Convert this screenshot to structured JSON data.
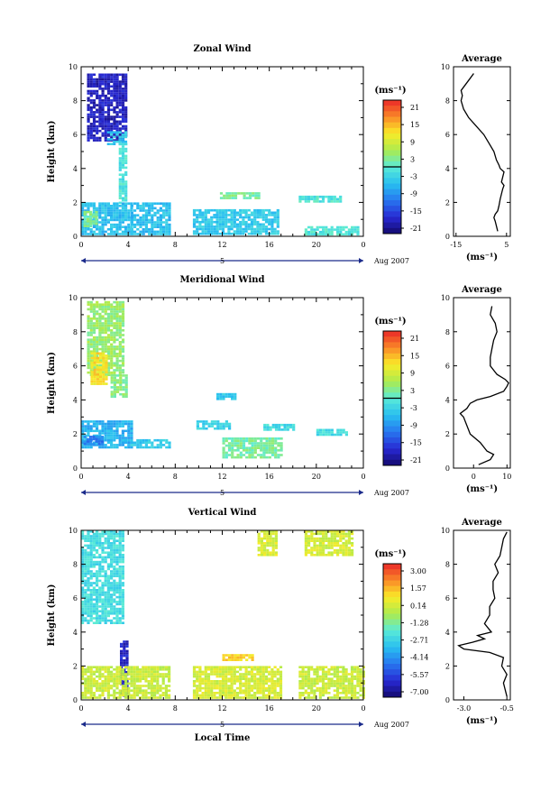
{
  "chart_data": [
    {
      "type": "heatmap",
      "title": "Zonal Wind",
      "ylabel": "Height (km)",
      "xlabel": "",
      "x_ticks": [
        "0",
        "4",
        "8",
        "12",
        "16",
        "20",
        "0"
      ],
      "y_ticks": [
        "0",
        "2",
        "4",
        "6",
        "8",
        "10"
      ],
      "xlim": [
        0,
        24
      ],
      "ylim": [
        0,
        10
      ],
      "day_label": "5",
      "month_label": "Aug 2007",
      "colorbar": {
        "unit": "(ms⁻¹)",
        "min": -21,
        "max": 21,
        "zero_line": 0,
        "ticks": [
          "21",
          "15",
          "9",
          "3",
          "-3",
          "-9",
          "-15",
          "-21"
        ]
      },
      "blobs": [
        {
          "t": [
            0.5,
            3.8
          ],
          "z": [
            5.6,
            9.6
          ],
          "v": -17
        },
        {
          "t": [
            2.2,
            3.8
          ],
          "z": [
            5.5,
            6.2
          ],
          "v": -4
        },
        {
          "t": [
            3.2,
            3.9
          ],
          "z": [
            2.0,
            5.5
          ],
          "v": -1
        },
        {
          "t": [
            0.0,
            4.2
          ],
          "z": [
            0.1,
            2.0
          ],
          "v": -5
        },
        {
          "t": [
            0.2,
            1.2
          ],
          "z": [
            0.6,
            1.5
          ],
          "v": 2
        },
        {
          "t": [
            4.2,
            7.5
          ],
          "z": [
            0.1,
            2.0
          ],
          "v": -5
        },
        {
          "t": [
            9.5,
            16.8
          ],
          "z": [
            0.1,
            1.6
          ],
          "v": -4
        },
        {
          "t": [
            11.8,
            15.0
          ],
          "z": [
            2.2,
            2.6
          ],
          "v": 2
        },
        {
          "t": [
            19.0,
            23.5
          ],
          "z": [
            0.1,
            0.6
          ],
          "v": -1
        },
        {
          "t": [
            18.5,
            22.0
          ],
          "z": [
            2.0,
            2.4
          ],
          "v": -1
        }
      ],
      "profile": {
        "title": "Average",
        "xlabel": "(ms⁻¹)",
        "x_ticks": [
          "-15",
          "5"
        ],
        "xlim": [
          -16,
          6.5
        ],
        "z": [
          0.3,
          0.6,
          0.9,
          1.1,
          1.3,
          1.5,
          1.8,
          2.2,
          2.5,
          2.8,
          3.0,
          3.2,
          3.5,
          3.8,
          4.0,
          4.2,
          4.5,
          5.0,
          5.5,
          6.0,
          6.5,
          7.0,
          7.5,
          8.0,
          8.3,
          8.6,
          9.0,
          9.3,
          9.6
        ],
        "v": [
          1.5,
          1.0,
          0.5,
          0.0,
          0.5,
          1.5,
          2.0,
          2.5,
          3.0,
          3.5,
          4.0,
          3.0,
          3.5,
          4.0,
          2.5,
          2.0,
          1.0,
          0.0,
          -2.0,
          -4.0,
          -7.0,
          -10.0,
          -12.0,
          -13.0,
          -12.5,
          -13.0,
          -11.0,
          -9.5,
          -8.0
        ]
      }
    },
    {
      "type": "heatmap",
      "title": "Meridional Wind",
      "ylabel": "Height (km)",
      "xlabel": "",
      "x_ticks": [
        "0",
        "4",
        "8",
        "12",
        "16",
        "20",
        "0"
      ],
      "y_ticks": [
        "0",
        "2",
        "4",
        "6",
        "8",
        "10"
      ],
      "xlim": [
        0,
        24
      ],
      "ylim": [
        0,
        10
      ],
      "day_label": "5",
      "month_label": "Aug 2007",
      "colorbar": {
        "unit": "(ms⁻¹)",
        "min": -21,
        "max": 21,
        "zero_line": 0,
        "ticks": [
          "21",
          "15",
          "9",
          "3",
          "-3",
          "-9",
          "-15",
          "-21"
        ]
      },
      "blobs": [
        {
          "t": [
            0.5,
            3.5
          ],
          "z": [
            5.5,
            9.8
          ],
          "v": 4
        },
        {
          "t": [
            0.8,
            2.2
          ],
          "z": [
            5.0,
            6.8
          ],
          "v": 11
        },
        {
          "t": [
            2.5,
            3.8
          ],
          "z": [
            4.2,
            5.5
          ],
          "v": 3
        },
        {
          "t": [
            0.0,
            4.2
          ],
          "z": [
            1.2,
            2.8
          ],
          "v": -6
        },
        {
          "t": [
            0.2,
            1.8
          ],
          "z": [
            1.4,
            1.9
          ],
          "v": -10
        },
        {
          "t": [
            4.2,
            7.5
          ],
          "z": [
            1.2,
            1.7
          ],
          "v": -4
        },
        {
          "t": [
            9.8,
            12.5
          ],
          "z": [
            2.3,
            2.8
          ],
          "v": -3
        },
        {
          "t": [
            12.0,
            17.0
          ],
          "z": [
            0.6,
            1.8
          ],
          "v": 2
        },
        {
          "t": [
            15.5,
            18.0
          ],
          "z": [
            2.2,
            2.6
          ],
          "v": -2
        },
        {
          "t": [
            11.5,
            13.0
          ],
          "z": [
            4.0,
            4.4
          ],
          "v": -4
        },
        {
          "t": [
            20.0,
            22.5
          ],
          "z": [
            2.0,
            2.3
          ],
          "v": -2
        }
      ],
      "profile": {
        "title": "Average",
        "xlabel": "(ms⁻¹)",
        "x_ticks": [
          "0",
          "10"
        ],
        "xlim": [
          -6,
          11
        ],
        "z": [
          0.2,
          0.5,
          0.8,
          1.0,
          1.5,
          2.0,
          2.5,
          3.0,
          3.2,
          3.5,
          3.8,
          4.0,
          4.2,
          4.5,
          4.8,
          5.0,
          5.2,
          5.5,
          6.0,
          6.5,
          7.0,
          7.5,
          8.0,
          8.5,
          9.0,
          9.5
        ],
        "v": [
          1.5,
          5.0,
          6.0,
          4.0,
          2.0,
          -1.0,
          -2.0,
          -3.0,
          -4.0,
          -2.0,
          -1.0,
          1.0,
          5.0,
          9.0,
          10.0,
          10.5,
          9.5,
          7.0,
          5.0,
          5.0,
          5.5,
          6.0,
          7.0,
          6.5,
          5.0,
          5.5
        ]
      }
    },
    {
      "type": "heatmap",
      "title": "Vertical Wind",
      "ylabel": "Height (km)",
      "xlabel": "Local Time",
      "x_ticks": [
        "0",
        "4",
        "8",
        "12",
        "16",
        "20",
        "0"
      ],
      "y_ticks": [
        "0",
        "2",
        "4",
        "6",
        "8",
        "10"
      ],
      "xlim": [
        0,
        24
      ],
      "ylim": [
        0,
        10
      ],
      "day_label": "5",
      "month_label": "Aug 2007",
      "colorbar": {
        "unit": "(ms⁻¹)",
        "min": -7.8,
        "max": 3.8,
        "zero_line": null,
        "ticks": [
          "3.00",
          "1.57",
          "0.14",
          "-1.28",
          "-2.71",
          "-4.14",
          "-5.57",
          "-7.00"
        ]
      },
      "blobs": [
        {
          "t": [
            0.0,
            3.5
          ],
          "z": [
            4.5,
            10.0
          ],
          "v": -2.5
        },
        {
          "t": [
            3.3,
            4.0
          ],
          "z": [
            0.2,
            3.5
          ],
          "v": -6.5
        },
        {
          "t": [
            0.0,
            7.5
          ],
          "z": [
            0.2,
            2.0
          ],
          "v": 0.0
        },
        {
          "t": [
            9.5,
            17.0
          ],
          "z": [
            0.2,
            2.0
          ],
          "v": 0.2
        },
        {
          "t": [
            12.0,
            14.5
          ],
          "z": [
            2.3,
            2.7
          ],
          "v": 1.2
        },
        {
          "t": [
            18.5,
            24.0
          ],
          "z": [
            0.2,
            2.0
          ],
          "v": 0.0
        },
        {
          "t": [
            19.0,
            23.0
          ],
          "z": [
            8.5,
            10.0
          ],
          "v": 0.2
        },
        {
          "t": [
            15.0,
            16.5
          ],
          "z": [
            8.5,
            10.0
          ],
          "v": 0.3
        }
      ],
      "profile": {
        "title": "Average",
        "xlabel": "(ms⁻¹)",
        "x_ticks": [
          "-3.0",
          "-0.5"
        ],
        "xlim": [
          -3.6,
          -0.3
        ],
        "z": [
          0.2,
          0.6,
          1.0,
          1.5,
          2.0,
          2.5,
          2.8,
          3.0,
          3.2,
          3.4,
          3.6,
          3.8,
          4.0,
          4.5,
          5.0,
          5.5,
          6.0,
          6.5,
          7.0,
          7.5,
          8.0,
          8.5,
          9.0,
          9.5,
          9.9
        ],
        "v": [
          -0.5,
          -0.6,
          -0.7,
          -0.5,
          -0.8,
          -0.7,
          -1.5,
          -3.0,
          -3.3,
          -2.5,
          -1.8,
          -2.2,
          -1.4,
          -1.8,
          -1.5,
          -1.5,
          -1.2,
          -1.3,
          -1.3,
          -1.0,
          -1.2,
          -0.9,
          -0.8,
          -0.7,
          -0.5
        ]
      }
    }
  ]
}
